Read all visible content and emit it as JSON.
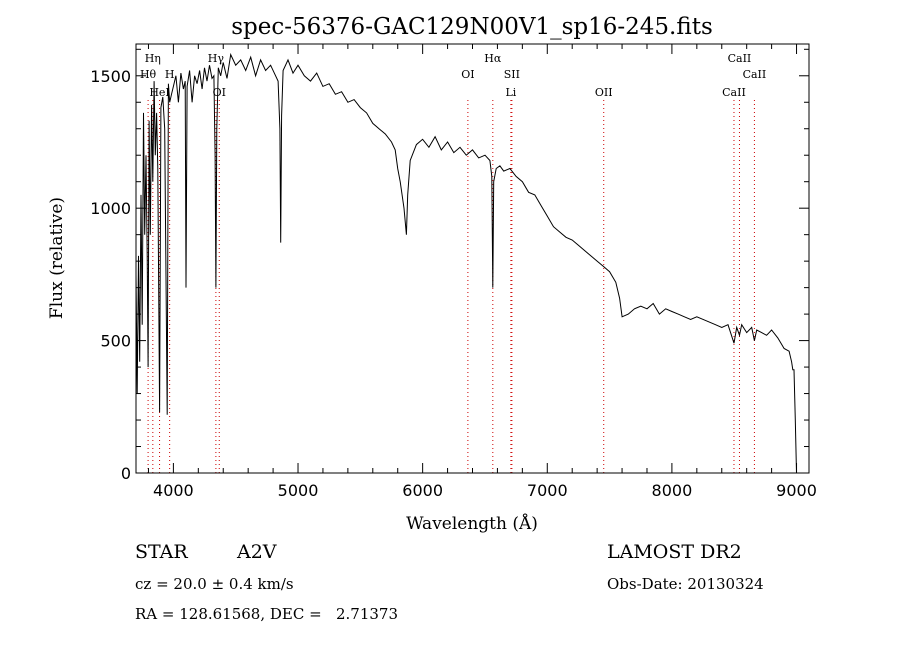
{
  "chart_data": {
    "type": "line",
    "title": "spec-56376-GAC129N00V1_sp16-245.fits",
    "xlabel": "Wavelength (Å)",
    "ylabel": "Flux (relative)",
    "xlim": [
      3700,
      9100
    ],
    "ylim": [
      0,
      1620
    ],
    "xticks": [
      4000,
      5000,
      6000,
      7000,
      8000,
      9000
    ],
    "yticks": [
      0,
      500,
      1000,
      1500
    ],
    "grid": false,
    "series": [
      {
        "x": [
          3700,
          3710,
          3720,
          3730,
          3740,
          3750,
          3760,
          3770,
          3780,
          3790,
          3797,
          3805,
          3815,
          3825,
          3835,
          3845,
          3855,
          3865,
          3875,
          3889,
          3900,
          3915,
          3930,
          3950,
          3960,
          3970,
          3985,
          4000,
          4020,
          4040,
          4060,
          4080,
          4095,
          4101,
          4110,
          4130,
          4150,
          4170,
          4190,
          4210,
          4230,
          4250,
          4270,
          4290,
          4310,
          4325,
          4335,
          4341,
          4348,
          4360,
          4380,
          4400,
          4430,
          4460,
          4500,
          4540,
          4580,
          4620,
          4660,
          4700,
          4740,
          4780,
          4810,
          4840,
          4855,
          4861,
          4868,
          4880,
          4920,
          4960,
          5000,
          5050,
          5100,
          5150,
          5200,
          5250,
          5300,
          5350,
          5400,
          5450,
          5500,
          5550,
          5600,
          5650,
          5700,
          5750,
          5780,
          5800,
          5820,
          5850,
          5870,
          5880,
          5900,
          5950,
          6000,
          6050,
          6100,
          6150,
          6200,
          6250,
          6300,
          6350,
          6400,
          6450,
          6500,
          6540,
          6555,
          6563,
          6570,
          6590,
          6620,
          6650,
          6700,
          6750,
          6800,
          6850,
          6900,
          6950,
          7000,
          7050,
          7100,
          7150,
          7200,
          7250,
          7300,
          7350,
          7400,
          7450,
          7500,
          7550,
          7580,
          7600,
          7650,
          7700,
          7750,
          7800,
          7850,
          7900,
          7950,
          8000,
          8050,
          8100,
          8150,
          8200,
          8250,
          8300,
          8350,
          8400,
          8450,
          8498,
          8520,
          8542,
          8560,
          8600,
          8640,
          8662,
          8680,
          8720,
          8760,
          8800,
          8850,
          8900,
          8940,
          8960,
          8970,
          8980,
          8990,
          9000
        ],
        "values": [
          750,
          300,
          820,
          420,
          1050,
          560,
          1360,
          900,
          1200,
          820,
          400,
          1330,
          900,
          1390,
          1100,
          1480,
          1200,
          1360,
          1150,
          230,
          1380,
          1420,
          1300,
          220,
          1470,
          1400,
          1430,
          1460,
          1500,
          1400,
          1510,
          1450,
          1480,
          700,
          1460,
          1520,
          1400,
          1500,
          1470,
          1520,
          1450,
          1530,
          1480,
          1540,
          1490,
          1500,
          1200,
          700,
          1300,
          1530,
          1500,
          1550,
          1490,
          1580,
          1540,
          1560,
          1520,
          1570,
          1500,
          1560,
          1520,
          1540,
          1510,
          1480,
          1300,
          870,
          1350,
          1520,
          1560,
          1510,
          1540,
          1500,
          1480,
          1510,
          1460,
          1470,
          1430,
          1440,
          1400,
          1410,
          1380,
          1360,
          1320,
          1300,
          1280,
          1250,
          1220,
          1150,
          1100,
          1000,
          900,
          1050,
          1180,
          1240,
          1260,
          1230,
          1270,
          1220,
          1250,
          1210,
          1230,
          1200,
          1220,
          1190,
          1200,
          1180,
          1120,
          700,
          1100,
          1150,
          1160,
          1140,
          1150,
          1120,
          1100,
          1060,
          1050,
          1010,
          970,
          930,
          910,
          890,
          880,
          860,
          840,
          820,
          800,
          780,
          760,
          720,
          660,
          590,
          600,
          620,
          630,
          620,
          640,
          600,
          620,
          610,
          600,
          590,
          580,
          590,
          580,
          570,
          560,
          550,
          560,
          490,
          550,
          520,
          560,
          530,
          550,
          500,
          540,
          530,
          520,
          540,
          510,
          470,
          460,
          420,
          390,
          390,
          200,
          0
        ]
      }
    ],
    "lines": [
      {
        "label": "Hη",
        "x": 3835,
        "row": 1
      },
      {
        "label": "Hθ",
        "x": 3797,
        "row": 2
      },
      {
        "label": "H",
        "x": 3970,
        "row": 2
      },
      {
        "label": "HeI",
        "x": 3889,
        "row": 3
      },
      {
        "label": "Hγ",
        "x": 4341,
        "row": 1
      },
      {
        "label": "OI",
        "x": 4368,
        "row": 3
      },
      {
        "label": "Hα",
        "x": 6563,
        "row": 1
      },
      {
        "label": "OI",
        "x": 6363,
        "row": 2
      },
      {
        "label": "SII",
        "x": 6716,
        "row": 2
      },
      {
        "label": "Li",
        "x": 6708,
        "row": 3
      },
      {
        "label": "OII",
        "x": 7453,
        "row": 3
      },
      {
        "label": "CaII",
        "x": 8542,
        "row": 1
      },
      {
        "label": "CaII",
        "x": 8662,
        "row": 2
      },
      {
        "label": "CaII",
        "x": 8498,
        "row": 3
      }
    ]
  },
  "info": {
    "object_type": "STAR",
    "spectral_class": "A2V",
    "survey": "LAMOST DR2",
    "cz": "cz = 20.0 ± 0.4 km/s",
    "obs_date": "Obs-Date: 20130324",
    "coords": "RA = 128.61568, DEC =   2.71373"
  }
}
